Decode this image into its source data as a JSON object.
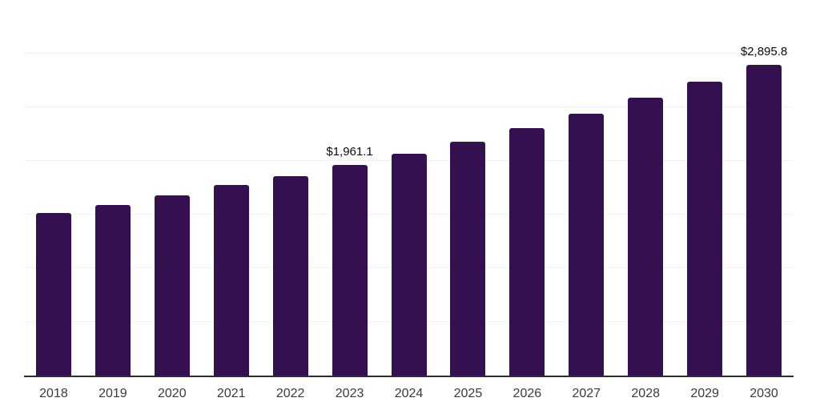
{
  "chart_data": {
    "type": "bar",
    "categories": [
      "2018",
      "2019",
      "2020",
      "2021",
      "2022",
      "2023",
      "2024",
      "2025",
      "2026",
      "2027",
      "2028",
      "2029",
      "2030"
    ],
    "values": [
      1515.0,
      1591.0,
      1679.0,
      1776.0,
      1858.0,
      1961.1,
      2065.0,
      2181.0,
      2306.0,
      2440.0,
      2587.0,
      2741.0,
      2895.8
    ],
    "value_labels": [
      null,
      null,
      null,
      null,
      null,
      "$1,961.1",
      null,
      null,
      null,
      null,
      null,
      null,
      "$2,895.8"
    ],
    "ylim": [
      0,
      3500
    ],
    "grid_step": 500,
    "grid": "horizontal-only",
    "legend": "none",
    "y_tick_labels": "none",
    "colors": {
      "bar": "#341050",
      "axis": "#2d2d2d",
      "grid": "#f2f2f4",
      "tick_label": "#3a3a3a",
      "value_label": "#0a0a0a",
      "background": "#ffffff"
    }
  }
}
